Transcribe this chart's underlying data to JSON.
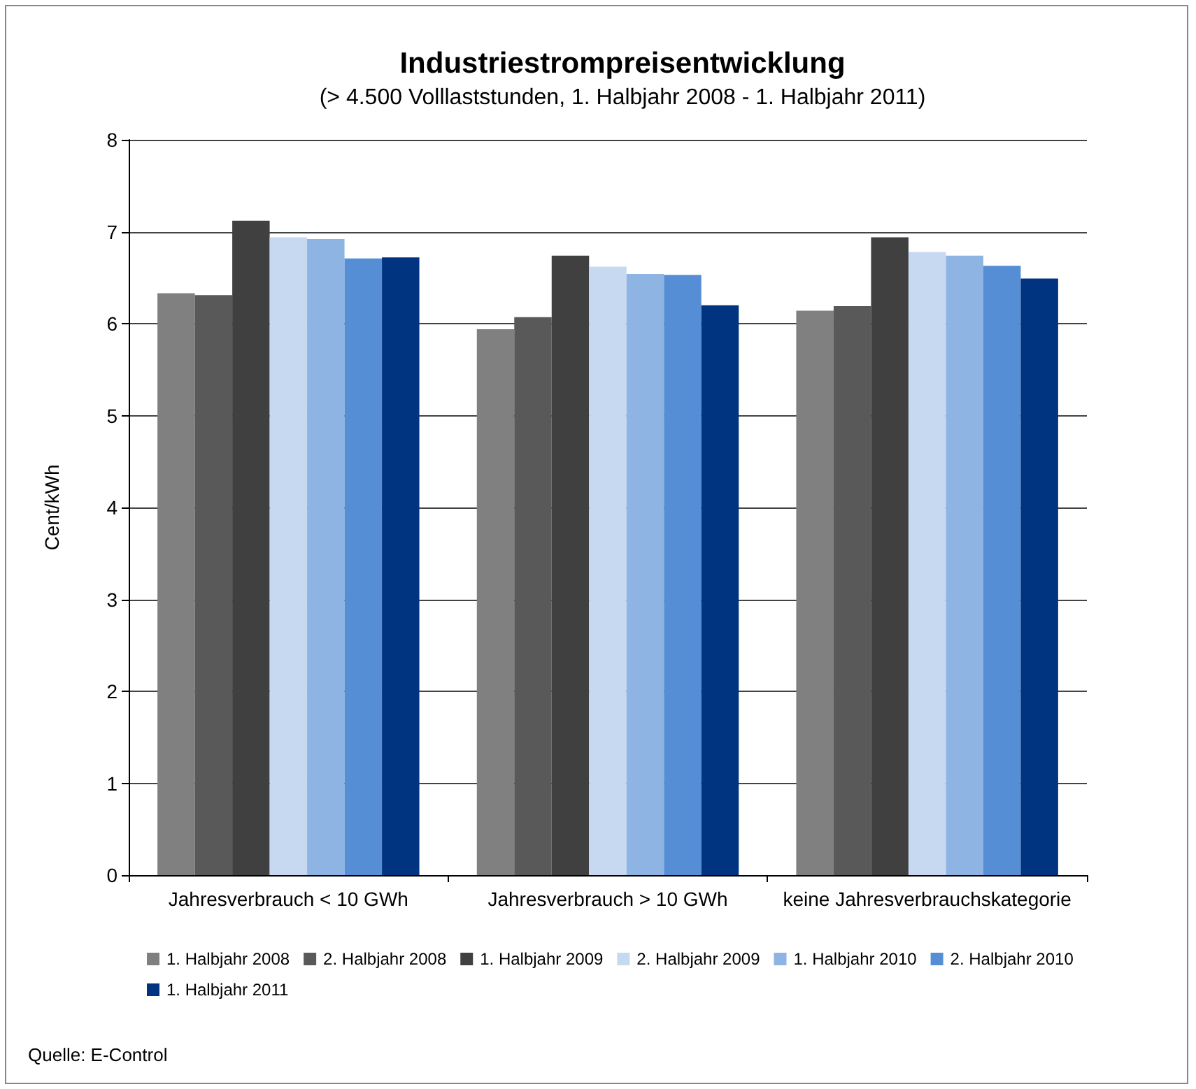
{
  "chart_data": {
    "type": "bar",
    "title": "Industriestrompreisentwicklung",
    "subtitle": "(> 4.500 Volllaststunden, 1. Halbjahr 2008 - 1. Halbjahr 2011)",
    "ylabel": "Cent/kWh",
    "categories": [
      "Jahresverbrauch < 10 GWh",
      "Jahresverbrauch > 10 GWh",
      "keine Jahresverbrauchskategorie"
    ],
    "series": [
      {
        "name": "1. Halbjahr 2008",
        "color": "#808080",
        "values": [
          6.33,
          5.94,
          6.14
        ]
      },
      {
        "name": "2. Halbjahr 2008",
        "color": "#595959",
        "values": [
          6.31,
          6.07,
          6.19
        ]
      },
      {
        "name": "1. Halbjahr 2009",
        "color": "#404040",
        "values": [
          7.12,
          6.74,
          6.94
        ]
      },
      {
        "name": "2. Halbjahr 2009",
        "color": "#c6d9f1",
        "values": [
          6.94,
          6.62,
          6.78
        ]
      },
      {
        "name": "1. Halbjahr 2010",
        "color": "#8eb4e3",
        "values": [
          6.92,
          6.54,
          6.74
        ]
      },
      {
        "name": "2. Halbjahr 2010",
        "color": "#558ed5",
        "values": [
          6.71,
          6.53,
          6.63
        ]
      },
      {
        "name": "1. Halbjahr 2011",
        "color": "#003380",
        "values": [
          6.72,
          6.2,
          6.49
        ]
      }
    ],
    "ylim": [
      0,
      8
    ],
    "yticks": [
      0,
      1,
      2,
      3,
      4,
      5,
      6,
      7,
      8
    ],
    "grid": "y",
    "legend": "bottom",
    "annotations": [
      "Quelle: E-Control"
    ]
  }
}
